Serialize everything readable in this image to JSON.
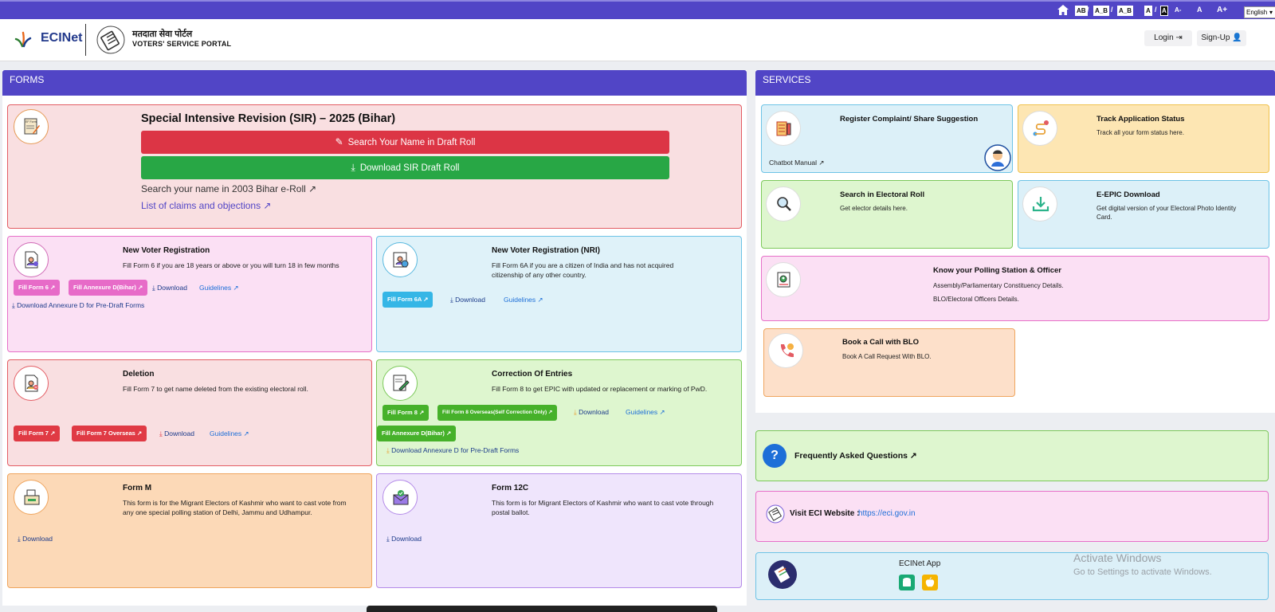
{
  "accessibility": {
    "contrast_1": "AB",
    "contrast_2": "A_B",
    "contrast_3": "A_B",
    "contrast_4": "A",
    "contrast_5": "A",
    "font_minus": "A-",
    "font_normal": "A",
    "font_plus": "A+",
    "language": "English"
  },
  "header": {
    "brand": "ECINet",
    "portal_hindi": "मतदाता सेवा पोर्टल",
    "portal_english": "VOTERS' SERVICE PORTAL",
    "login": "Login",
    "signup": "Sign-Up"
  },
  "forms": {
    "heading": "FORMS",
    "sir": {
      "icon_label": "EF Form",
      "title": "Special Intensive Revision (SIR) – 2025 (Bihar)",
      "search_button": "Search Your Name in Draft Roll",
      "download_button": "Download SIR Draft Roll",
      "link_2003": "Search your name in 2003 Bihar e-Roll",
      "link_claims": "List of claims and objections"
    },
    "new_voter": {
      "title": "New Voter Registration",
      "desc": "Fill Form 6 if you are 18 years or above or you will turn 18 in few months",
      "btn_form6": "Fill Form 6",
      "btn_annexure": "Fill Annexure D(Bihar)",
      "download": "Download",
      "guidelines": "Guidelines",
      "annexure_link": "Download Annexure D for Pre-Draft Forms"
    },
    "nri": {
      "title": "New Voter Registration (NRI)",
      "desc": "Fill Form 6A if you are a citizen of India and has not acquired citizenship of any other country.",
      "btn_form6a": "Fill Form 6A",
      "download": "Download",
      "guidelines": "Guidelines"
    },
    "deletion": {
      "title": "Deletion",
      "desc": "Fill Form 7 to get name deleted from the existing electoral roll.",
      "btn_form7": "Fill Form 7",
      "btn_form7_overseas": "Fill Form 7 Overseas",
      "download": "Download",
      "guidelines": "Guidelines"
    },
    "correction": {
      "title": "Correction Of Entries",
      "desc": "Fill Form 8 to get EPIC with updated or replacement or marking of PwD.",
      "btn_form8": "Fill Form 8",
      "btn_form8_overseas": "Fill Form 8 Overseas(Self Correction Only)",
      "download": "Download",
      "guidelines": "Guidelines",
      "btn_annexure": "Fill Annexure D(Bihar)",
      "annexure_link": "Download Annexure D for Pre-Draft Forms"
    },
    "form_m": {
      "title": "Form M",
      "desc": "This form is for the Migrant Electors of Kashmir who want to cast vote from any one special polling station of Delhi, Jammu and Udhampur.",
      "download": "Download"
    },
    "form_12c": {
      "title": "Form 12C",
      "desc": "This form is for Migrant Electors of Kashmir who want to cast vote through postal ballot.",
      "download": "Download"
    }
  },
  "services": {
    "heading": "SERVICES",
    "complaint": {
      "title": "Register Complaint/ Share Suggestion",
      "chatbot": "Chatbot Manual"
    },
    "track": {
      "title": "Track Application Status",
      "desc": "Track all your form status here."
    },
    "search_roll": {
      "title": "Search in Electoral Roll",
      "desc": "Get elector details here."
    },
    "epic": {
      "title": "E-EPIC Download",
      "desc": "Get digital version of your Electoral Photo Identity Card."
    },
    "polling": {
      "title": "Know your Polling Station & Officer",
      "desc1": "Assembly/Parliamentary Constituency Details.",
      "desc2": "BLO/Electoral Officers Details."
    },
    "blo": {
      "title": "Book a Call with BLO",
      "desc": "Book A Call Request With BLO."
    }
  },
  "faq": {
    "label": "Frequently Asked Questions"
  },
  "eci": {
    "label": "Visit ECI Website :",
    "url": "https://eci.gov.in"
  },
  "app": {
    "label": "ECINet App"
  },
  "watermark": {
    "line1": "Activate Windows",
    "line2": "Go to Settings to activate Windows."
  },
  "colors": {
    "brand_purple": "#5145c6",
    "red_button": "#dc3545",
    "green_button": "#28a745"
  }
}
